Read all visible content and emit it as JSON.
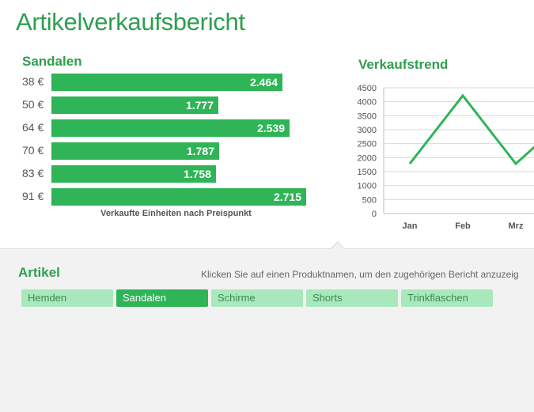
{
  "header": {
    "title": "Artikelverkaufsbericht"
  },
  "bar_chart": {
    "title": "Sandalen",
    "caption": "Verkaufte Einheiten nach Preispunkt",
    "color": "#2fb457"
  },
  "line_chart": {
    "title": "Verkaufstrend",
    "color": "#2fb457"
  },
  "chart_data": [
    {
      "type": "bar",
      "orientation": "horizontal",
      "title": "Sandalen",
      "xlabel": "Verkaufte Einheiten nach Preispunkt",
      "categories": [
        "38 €",
        "50 €",
        "64 €",
        "70 €",
        "83 €",
        "91 €"
      ],
      "values": [
        2464,
        1777,
        2539,
        1787,
        1758,
        2715
      ],
      "value_labels": [
        "2.464",
        "1.777",
        "2.539",
        "1.787",
        "1.758",
        "2.715"
      ],
      "xlim": [
        0,
        2715
      ]
    },
    {
      "type": "line",
      "title": "Verkaufstrend",
      "categories": [
        "Jan",
        "Feb",
        "Mrz"
      ],
      "values": [
        1780,
        4220,
        1780
      ],
      "ylim": [
        0,
        4500
      ],
      "yticks": [
        0,
        500,
        1000,
        1500,
        2000,
        2500,
        3000,
        3500,
        4000,
        4500
      ],
      "grid": true
    }
  ],
  "panel": {
    "title": "Artikel",
    "hint": "Klicken Sie auf einen Produktnamen, um den zugehörigen Bericht anzuzeig",
    "tabs": [
      {
        "label": "Hemden",
        "active": false
      },
      {
        "label": "Sandalen",
        "active": true
      },
      {
        "label": "Schirme",
        "active": false
      },
      {
        "label": "Shorts",
        "active": false
      },
      {
        "label": "Trinkflaschen",
        "active": false
      }
    ]
  }
}
